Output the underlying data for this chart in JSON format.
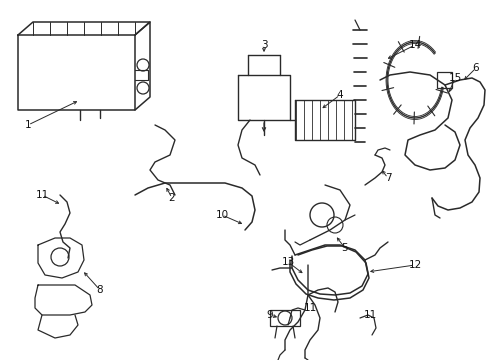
{
  "bg_color": "#ffffff",
  "line_color": "#2a2a2a",
  "lw": 1.0,
  "fig_w": 4.89,
  "fig_h": 3.6,
  "dpi": 100
}
